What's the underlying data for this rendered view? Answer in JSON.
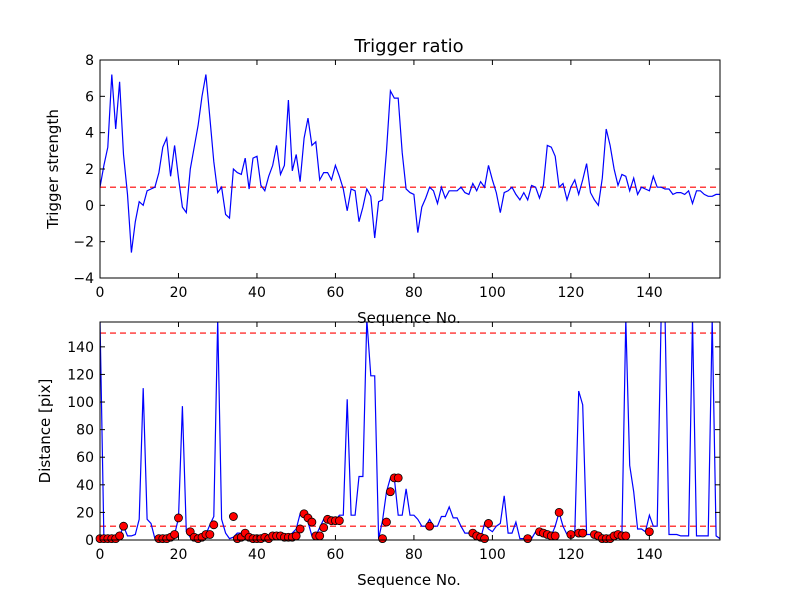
{
  "chart_data": [
    {
      "type": "line",
      "title": "Trigger ratio",
      "xlabel": "Sequence No.",
      "ylabel": "Trigger strength",
      "xlim": [
        0,
        158
      ],
      "ylim": [
        -4,
        8
      ],
      "xticks": [
        0,
        20,
        40,
        60,
        80,
        100,
        120,
        140
      ],
      "yticks": [
        -4,
        -2,
        0,
        2,
        4,
        6,
        8
      ],
      "line_color": "#0000ff",
      "threshold": {
        "value": 1,
        "color": "#ff0000",
        "style": "dashed"
      },
      "series": [
        {
          "name": "Trigger strength",
          "x": [
            0,
            1,
            2,
            3,
            4,
            5,
            6,
            7,
            8,
            9,
            10,
            11,
            12,
            13,
            14,
            15,
            16,
            17,
            18,
            19,
            20,
            21,
            22,
            23,
            24,
            25,
            26,
            27,
            28,
            29,
            30,
            31,
            32,
            33,
            34,
            35,
            36,
            37,
            38,
            39,
            40,
            41,
            42,
            43,
            44,
            45,
            46,
            47,
            48,
            49,
            50,
            51,
            52,
            53,
            54,
            55,
            56,
            57,
            58,
            59,
            60,
            61,
            62,
            63,
            64,
            65,
            66,
            67,
            68,
            69,
            70,
            71,
            72,
            73,
            74,
            75,
            76,
            77,
            78,
            79,
            80,
            81,
            82,
            83,
            84,
            85,
            86,
            87,
            88,
            89,
            90,
            91,
            92,
            93,
            94,
            95,
            96,
            97,
            98,
            99,
            100,
            101,
            102,
            103,
            104,
            105,
            106,
            107,
            108,
            109,
            110,
            111,
            112,
            113,
            114,
            115,
            116,
            117,
            118,
            119,
            120,
            121,
            122,
            123,
            124,
            125,
            126,
            127,
            128,
            129,
            130,
            131,
            132,
            133,
            134,
            135,
            136,
            137,
            138,
            139,
            140,
            141,
            142,
            143,
            144,
            145,
            146,
            147,
            148,
            149,
            150,
            151,
            152,
            153,
            154,
            155,
            156,
            157,
            158
          ],
          "values": [
            1.0,
            2.2,
            3.2,
            7.2,
            4.2,
            6.8,
            2.8,
            0.6,
            -2.6,
            -0.9,
            0.2,
            0.0,
            0.8,
            0.9,
            1.0,
            1.8,
            3.2,
            3.7,
            1.6,
            3.3,
            1.5,
            -0.1,
            -0.4,
            2.0,
            3.2,
            4.4,
            6.0,
            7.2,
            4.8,
            2.4,
            0.7,
            1.0,
            -0.5,
            -0.7,
            2.0,
            1.8,
            1.7,
            2.6,
            0.9,
            2.6,
            2.7,
            1.1,
            0.8,
            1.6,
            2.2,
            3.3,
            1.7,
            2.2,
            5.8,
            1.9,
            2.8,
            1.3,
            3.7,
            4.8,
            3.3,
            3.5,
            1.4,
            1.8,
            1.8,
            1.4,
            2.2,
            1.6,
            0.9,
            -0.3,
            0.9,
            0.8,
            -0.9,
            -0.1,
            0.9,
            0.5,
            -1.8,
            0.2,
            0.3,
            3.0,
            6.3,
            5.9,
            5.9,
            2.9,
            0.9,
            0.7,
            0.6,
            -1.5,
            -0.1,
            0.4,
            1.0,
            0.8,
            0.1,
            1.0,
            0.4,
            0.8,
            0.8,
            0.8,
            1.0,
            0.7,
            0.6,
            1.2,
            0.8,
            1.3,
            1.0,
            2.2,
            1.4,
            0.7,
            -0.4,
            0.7,
            0.8,
            1.0,
            0.6,
            0.3,
            0.7,
            0.3,
            1.1,
            1.0,
            0.4,
            1.1,
            3.3,
            3.2,
            2.7,
            1.0,
            1.2,
            0.3,
            1.0,
            1.4,
            0.6,
            1.4,
            2.3,
            0.7,
            0.3,
            0.0,
            1.5,
            4.2,
            3.3,
            2.0,
            1.1,
            1.7,
            1.6,
            0.8,
            1.5,
            0.6,
            1.0,
            0.9,
            0.8,
            1.6,
            1.0,
            1.0,
            0.9,
            0.9,
            0.6,
            0.7,
            0.7,
            0.6,
            0.8,
            0.1,
            0.8,
            0.8,
            0.6,
            0.5,
            0.5,
            0.6,
            0.6
          ]
        }
      ]
    },
    {
      "type": "line",
      "title": "",
      "xlabel": "Sequence No.",
      "ylabel": "Distance [pix]",
      "xlim": [
        0,
        158
      ],
      "ylim": [
        0,
        158
      ],
      "xticks": [
        0,
        20,
        40,
        60,
        80,
        100,
        120,
        140
      ],
      "yticks": [
        0,
        20,
        40,
        60,
        80,
        100,
        120,
        140
      ],
      "line_color": "#0000ff",
      "marker_color": "#ff0000",
      "thresholds": [
        {
          "value": 10,
          "color": "#ff0000",
          "style": "dashed"
        },
        {
          "value": 150,
          "color": "#ff0000",
          "style": "dashed"
        }
      ],
      "series": [
        {
          "name": "Distance",
          "x": [
            0,
            1,
            2,
            3,
            4,
            5,
            6,
            7,
            8,
            9,
            10,
            11,
            12,
            13,
            14,
            15,
            16,
            17,
            18,
            19,
            20,
            21,
            22,
            23,
            24,
            25,
            26,
            27,
            28,
            29,
            30,
            31,
            32,
            33,
            34,
            35,
            36,
            37,
            38,
            39,
            40,
            41,
            42,
            43,
            44,
            45,
            46,
            47,
            48,
            49,
            50,
            51,
            52,
            53,
            54,
            55,
            56,
            57,
            58,
            59,
            60,
            61,
            62,
            63,
            64,
            65,
            66,
            67,
            68,
            69,
            70,
            71,
            72,
            73,
            74,
            75,
            76,
            77,
            78,
            79,
            80,
            81,
            82,
            83,
            84,
            85,
            86,
            87,
            88,
            89,
            90,
            91,
            92,
            93,
            94,
            95,
            96,
            97,
            98,
            99,
            100,
            101,
            102,
            103,
            104,
            105,
            106,
            107,
            108,
            109,
            110,
            111,
            112,
            113,
            114,
            115,
            116,
            117,
            118,
            119,
            120,
            121,
            122,
            123,
            124,
            125,
            126,
            127,
            128,
            129,
            130,
            131,
            132,
            133,
            134,
            135,
            136,
            137,
            138,
            139,
            140,
            141,
            142,
            143,
            144,
            145,
            146,
            147,
            148,
            149,
            150,
            151,
            152,
            153,
            154,
            155,
            156,
            157,
            158
          ],
          "values": [
            160,
            1,
            1,
            1,
            1,
            3,
            10,
            3,
            3,
            4,
            15,
            110,
            15,
            12,
            1,
            1,
            1,
            1,
            2,
            4,
            16,
            97,
            6,
            2,
            1,
            2,
            4,
            4,
            11,
            17,
            160,
            15,
            5,
            1,
            2,
            5,
            5,
            2,
            1,
            1,
            2,
            1,
            2,
            2,
            2,
            2,
            1,
            1,
            2,
            5,
            8,
            19,
            16,
            13,
            3,
            3,
            9,
            15,
            14,
            14,
            14,
            18,
            18,
            102,
            18,
            18,
            46,
            46,
            160,
            119,
            119,
            1,
            14,
            35,
            45,
            45,
            18,
            18,
            37,
            18,
            18,
            15,
            10,
            10,
            15,
            10,
            10,
            17,
            17,
            24,
            16,
            16,
            10,
            5,
            5,
            2,
            1,
            1,
            12,
            8,
            6,
            10,
            12,
            32,
            5,
            5,
            13,
            1,
            1,
            1,
            1,
            6,
            5,
            4,
            3,
            3,
            10,
            20,
            10,
            4,
            5,
            5,
            108,
            98,
            4,
            4,
            3,
            1,
            1,
            1,
            3,
            4,
            3,
            3,
            160,
            54,
            35,
            8,
            8,
            6,
            18,
            10,
            10,
            160,
            160,
            4,
            4,
            4,
            3,
            3,
            3,
            160,
            3,
            3,
            3,
            3,
            160,
            3,
            1
          ],
          "marker_x": [
            0,
            1,
            2,
            3,
            4,
            5,
            6,
            15,
            16,
            17,
            18,
            19,
            20,
            23,
            24,
            25,
            26,
            27,
            28,
            29,
            34,
            35,
            36,
            37,
            38,
            39,
            40,
            41,
            42,
            43,
            44,
            45,
            46,
            47,
            48,
            49,
            50,
            51,
            52,
            53,
            54,
            55,
            56,
            57,
            58,
            59,
            60,
            61,
            72,
            73,
            74,
            75,
            76,
            84,
            95,
            96,
            97,
            98,
            99,
            109,
            112,
            113,
            114,
            115,
            116,
            117,
            120,
            122,
            123,
            126,
            127,
            128,
            129,
            130,
            131,
            132,
            133,
            134,
            140
          ],
          "marker_values": [
            1,
            1,
            1,
            1,
            1,
            3,
            10,
            1,
            1,
            1,
            2,
            4,
            16,
            6,
            2,
            1,
            2,
            4,
            4,
            11,
            17,
            1,
            2,
            5,
            2,
            1,
            1,
            1,
            2,
            1,
            3,
            3,
            3,
            2,
            2,
            2,
            3,
            8,
            19,
            16,
            13,
            3,
            3,
            9,
            15,
            14,
            14,
            14,
            1,
            13,
            35,
            45,
            45,
            10,
            5,
            3,
            2,
            1,
            12,
            1,
            6,
            5,
            4,
            3,
            3,
            20,
            4,
            5,
            5,
            4,
            3,
            1,
            1,
            1,
            3,
            4,
            3,
            3,
            6
          ]
        }
      ]
    }
  ]
}
